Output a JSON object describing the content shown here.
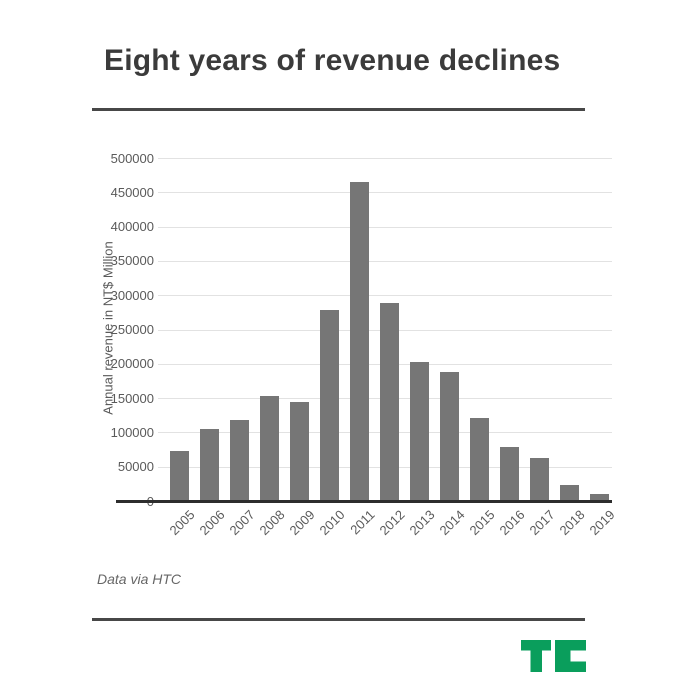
{
  "header": {
    "title": "Eight years of revenue declines"
  },
  "chart_data": {
    "type": "bar",
    "title": "Eight years of revenue declines",
    "categories": [
      "2005",
      "2006",
      "2007",
      "2008",
      "2009",
      "2010",
      "2011",
      "2012",
      "2013",
      "2014",
      "2015",
      "2016",
      "2017",
      "2018",
      "2019"
    ],
    "values": [
      72769,
      104817,
      118560,
      152560,
      144881,
      278761,
      465795,
      289020,
      203403,
      187911,
      121684,
      78161,
      62120,
      23741,
      10015
    ],
    "series_name": "Annual revenue",
    "xlabel": "",
    "ylabel": "Annual revenue in NT$ Million",
    "ylim": [
      0,
      500000
    ],
    "yticks": [
      0,
      50000,
      100000,
      150000,
      200000,
      250000,
      300000,
      350000,
      400000,
      450000,
      500000
    ],
    "grid": true,
    "legend_position": "none",
    "bar_color": "#767676"
  },
  "footer": {
    "source_note": "Data via HTC",
    "logo_name": "techcrunch-tc-logo",
    "logo_color": "#0a9e5c"
  },
  "colors": {
    "background": "#ffffff",
    "title_text": "#3b3b3b",
    "axis_text": "#5a5a5a",
    "gridline": "#e2e2e2",
    "axis_line": "#2d2d2d",
    "divider": "#474747"
  }
}
